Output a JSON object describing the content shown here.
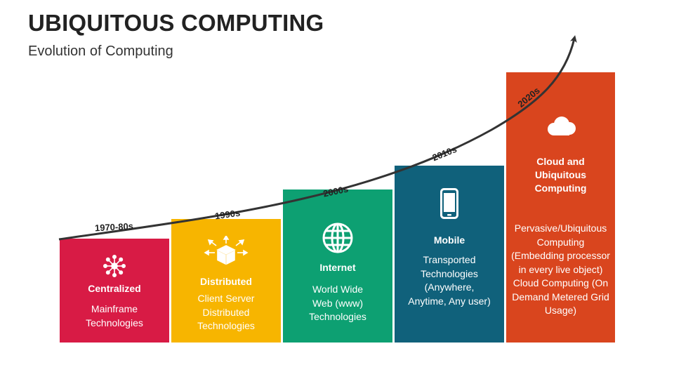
{
  "title": "UBIQUITOUS COMPUTING",
  "subtitle": "Evolution of Computing",
  "colors": {
    "red": "#D81B45",
    "yellow": "#F7B500",
    "green": "#0DA072",
    "teal": "#10617B",
    "orange": "#D9451E"
  },
  "eras": [
    {
      "label": "1970-80s",
      "heading": "Centralized",
      "desc": "Mainframe Technologies",
      "icon": "hub-network-icon"
    },
    {
      "label": "1990s",
      "heading": "Distributed",
      "desc": "Client Server Distributed Technologies",
      "icon": "distributed-cube-icon"
    },
    {
      "label": "2000s",
      "heading": "Internet",
      "desc": "World Wide Web (www) Technologies",
      "icon": "globe-icon"
    },
    {
      "label": "2010s",
      "heading": "Mobile",
      "desc": "Transported Technologies (Anywhere, Anytime, Any user)",
      "icon": "smartphone-icon"
    },
    {
      "label": "2020s",
      "heading": "Cloud and Ubiquitous Computing",
      "desc": "Pervasive/Ubiquitous Computing (Embedding processor in every live object) Cloud Computing (On Demand Metered Grid Usage)",
      "icon": "cloud-icon"
    }
  ]
}
